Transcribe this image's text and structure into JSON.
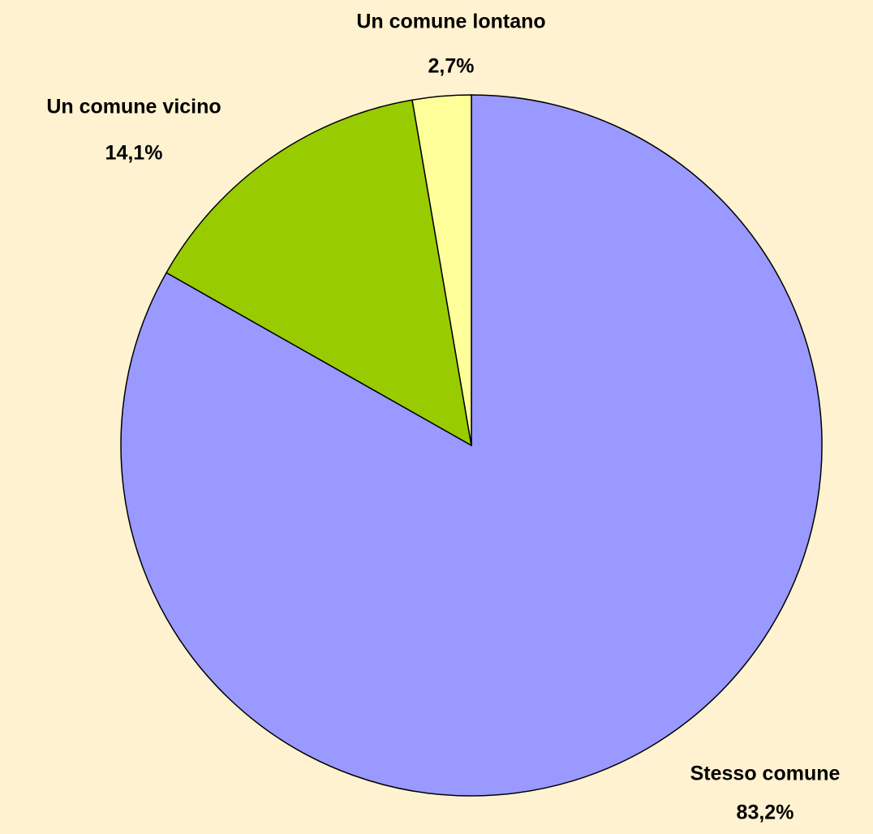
{
  "chart_data": {
    "type": "pie",
    "categories": [
      "Stesso comune",
      "Un comune vicino",
      "Un comune lontano"
    ],
    "values": [
      83.2,
      14.1,
      2.7
    ],
    "value_labels": [
      "83,2%",
      "14,1%",
      "2,7%"
    ],
    "colors": [
      "#9999ff",
      "#99cc00",
      "#ffff99"
    ]
  }
}
